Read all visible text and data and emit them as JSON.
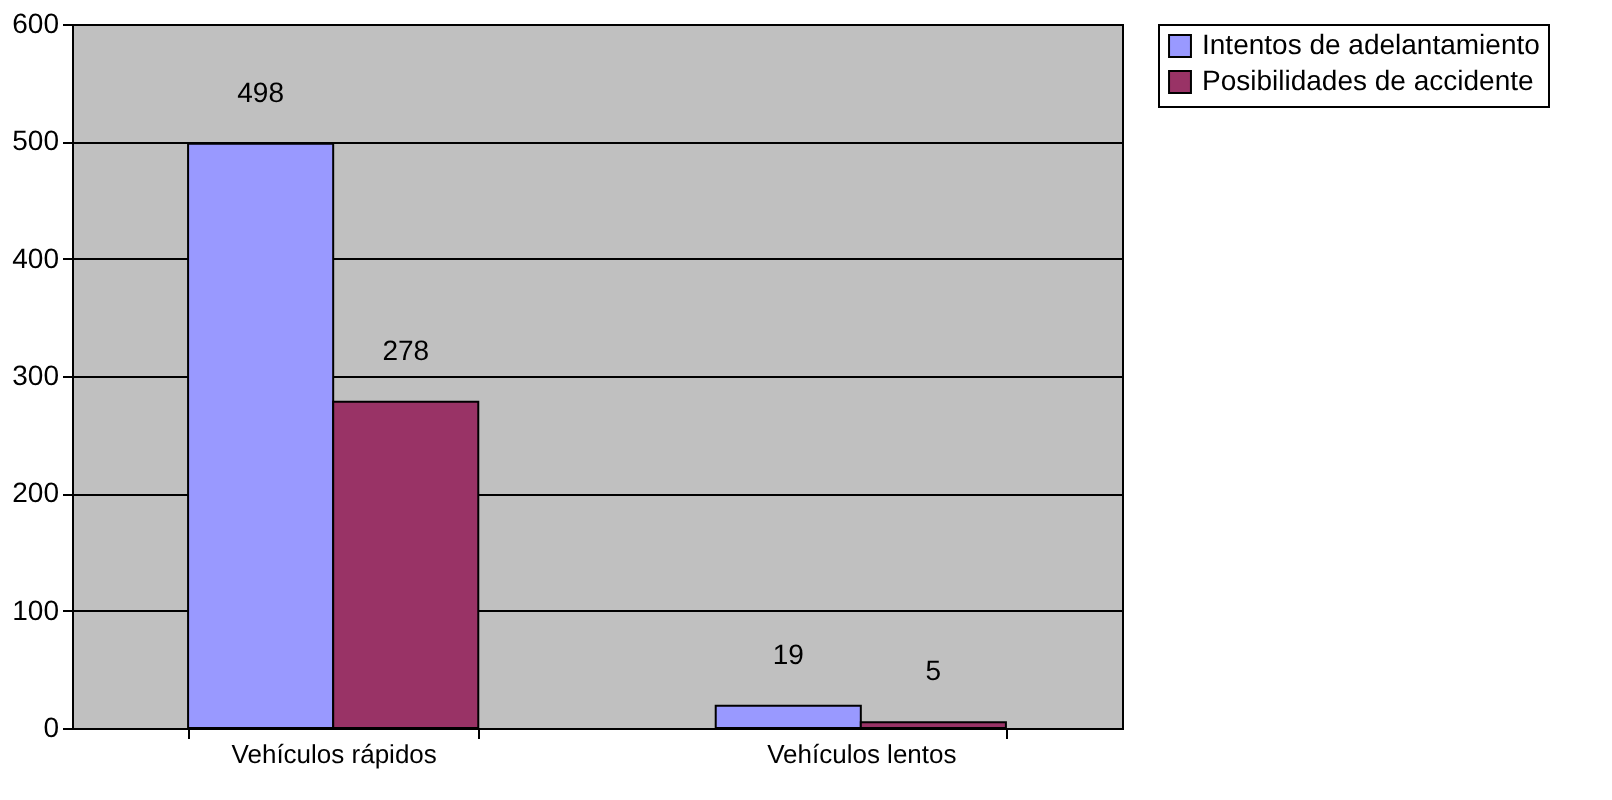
{
  "chart_data": {
    "type": "bar",
    "categories": [
      "Vehículos rápidos",
      "Vehículos lentos"
    ],
    "series": [
      {
        "name": "Intentos de adelantamiento",
        "color": "#9999ff",
        "values": [
          498,
          19
        ]
      },
      {
        "name": "Posibilidades de accidente",
        "color": "#993366",
        "values": [
          278,
          5
        ]
      }
    ],
    "ylim": [
      0,
      600
    ],
    "yticks": [
      0,
      100,
      200,
      300,
      400,
      500,
      600
    ],
    "grid": "y",
    "legend": "right",
    "data_labels": true
  }
}
